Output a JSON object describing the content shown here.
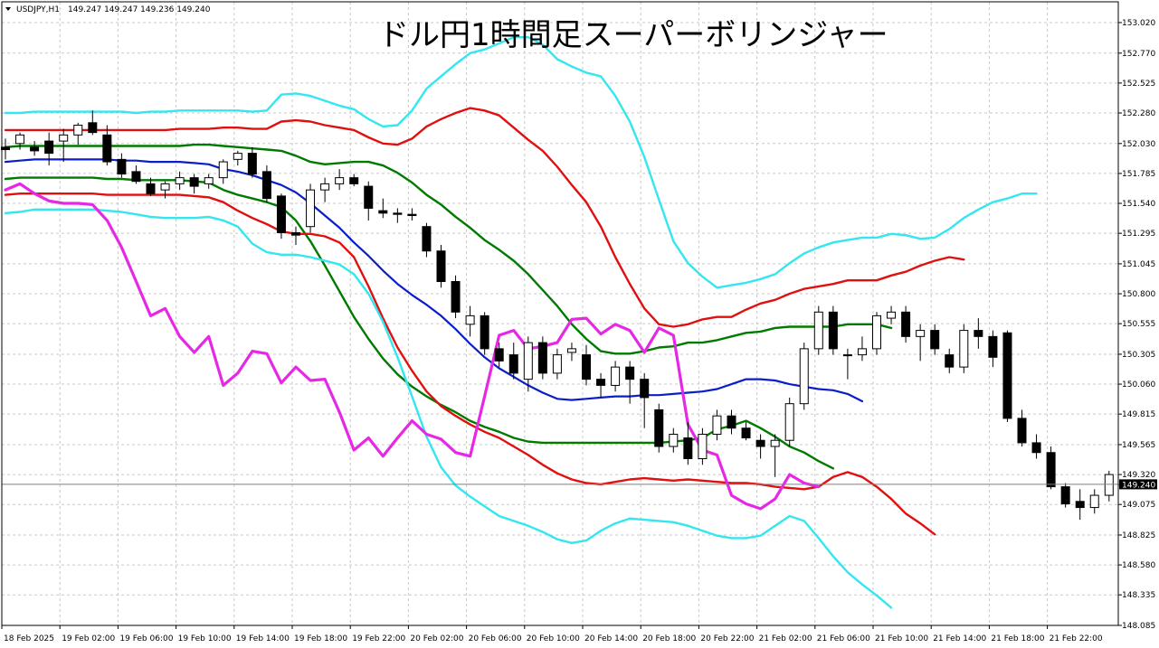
{
  "header": {
    "symbol": "USDJPY,H1",
    "ohlc": "149.247 149.247 149.236 149.240",
    "title": "ドル円1時間足スーパーボリンジャー"
  },
  "colors": {
    "background": "#ffffff",
    "grid": "#c8c8c8",
    "candle_up_fill": "#ffffff",
    "candle_down_fill": "#000000",
    "candle_outline": "#000000",
    "outer_band": "#33e6f0",
    "mid_band": "#e01010",
    "inner_band": "#007a00",
    "center_line": "#0a1ec8",
    "chikou_span": "#e628e6",
    "price_line": "#7f7f7f",
    "price_tag": "#000000"
  },
  "chart_data": {
    "type": "candlestick",
    "symbol": "USDJPY",
    "timeframe": "H1",
    "ylim": [
      148.085,
      153.19
    ],
    "y_ticks": [
      "153.020",
      "152.770",
      "152.525",
      "152.280",
      "152.030",
      "151.785",
      "151.540",
      "151.295",
      "151.045",
      "150.800",
      "150.555",
      "150.305",
      "150.060",
      "149.815",
      "149.565",
      "149.320",
      "149.075",
      "148.825",
      "148.580",
      "148.335",
      "148.085"
    ],
    "x_labels": [
      "18 Feb 2025",
      "19 Feb 02:00",
      "19 Feb 06:00",
      "19 Feb 10:00",
      "19 Feb 14:00",
      "19 Feb 18:00",
      "19 Feb 22:00",
      "20 Feb 02:00",
      "20 Feb 06:00",
      "20 Feb 10:00",
      "20 Feb 14:00",
      "20 Feb 18:00",
      "20 Feb 22:00",
      "21 Feb 02:00",
      "21 Feb 06:00",
      "21 Feb 10:00",
      "21 Feb 14:00",
      "21 Feb 18:00",
      "21 Feb 22:00"
    ],
    "current_price": "149.240",
    "candles": [
      [
        152.0,
        152.07,
        151.9,
        151.98
      ],
      [
        152.03,
        152.12,
        151.98,
        152.1
      ],
      [
        152.0,
        152.05,
        151.93,
        151.97
      ],
      [
        152.05,
        152.12,
        151.85,
        151.95
      ],
      [
        152.05,
        152.15,
        151.88,
        152.1
      ],
      [
        152.1,
        152.2,
        152.02,
        152.18
      ],
      [
        152.2,
        152.3,
        152.1,
        152.12
      ],
      [
        152.1,
        152.18,
        151.85,
        151.88
      ],
      [
        151.9,
        151.95,
        151.75,
        151.78
      ],
      [
        151.8,
        151.85,
        151.7,
        151.72
      ],
      [
        151.7,
        151.75,
        151.6,
        151.62
      ],
      [
        151.65,
        151.72,
        151.58,
        151.7
      ],
      [
        151.7,
        151.8,
        151.65,
        151.75
      ],
      [
        151.75,
        151.78,
        151.62,
        151.68
      ],
      [
        151.7,
        151.78,
        151.66,
        151.75
      ],
      [
        151.75,
        151.9,
        151.7,
        151.88
      ],
      [
        151.9,
        151.97,
        151.85,
        151.95
      ],
      [
        151.95,
        152.0,
        151.75,
        151.78
      ],
      [
        151.8,
        151.85,
        151.55,
        151.58
      ],
      [
        151.6,
        151.62,
        151.25,
        151.3
      ],
      [
        151.3,
        151.35,
        151.2,
        151.28
      ],
      [
        151.35,
        151.7,
        151.3,
        151.65
      ],
      [
        151.65,
        151.75,
        151.55,
        151.7
      ],
      [
        151.7,
        151.82,
        151.65,
        151.75
      ],
      [
        151.75,
        151.78,
        151.68,
        151.7
      ],
      [
        151.68,
        151.72,
        151.4,
        151.5
      ],
      [
        151.48,
        151.58,
        151.42,
        151.46
      ],
      [
        151.46,
        151.5,
        151.38,
        151.45
      ],
      [
        151.45,
        151.5,
        151.4,
        151.44
      ],
      [
        151.35,
        151.38,
        151.1,
        151.15
      ],
      [
        151.15,
        151.2,
        150.85,
        150.9
      ],
      [
        150.9,
        150.95,
        150.6,
        150.65
      ],
      [
        150.55,
        150.7,
        150.45,
        150.62
      ],
      [
        150.62,
        150.65,
        150.3,
        150.35
      ],
      [
        150.35,
        150.4,
        150.2,
        150.25
      ],
      [
        150.3,
        150.4,
        150.1,
        150.15
      ],
      [
        150.1,
        150.45,
        150.0,
        150.4
      ],
      [
        150.4,
        150.45,
        150.1,
        150.15
      ],
      [
        150.15,
        150.35,
        150.1,
        150.3
      ],
      [
        150.32,
        150.4,
        150.25,
        150.35
      ],
      [
        150.3,
        150.38,
        150.05,
        150.1
      ],
      [
        150.1,
        150.15,
        149.95,
        150.05
      ],
      [
        150.05,
        150.25,
        150.0,
        150.2
      ],
      [
        150.2,
        150.25,
        149.9,
        150.1
      ],
      [
        150.1,
        150.15,
        149.7,
        149.95
      ],
      [
        149.85,
        149.9,
        149.5,
        149.55
      ],
      [
        149.55,
        149.7,
        149.5,
        149.65
      ],
      [
        149.62,
        149.75,
        149.4,
        149.45
      ],
      [
        149.45,
        149.7,
        149.4,
        149.65
      ],
      [
        149.65,
        149.85,
        149.6,
        149.8
      ],
      [
        149.8,
        149.85,
        149.65,
        149.7
      ],
      [
        149.7,
        149.75,
        149.6,
        149.62
      ],
      [
        149.6,
        149.65,
        149.45,
        149.55
      ],
      [
        149.55,
        149.65,
        149.3,
        149.6
      ],
      [
        149.6,
        149.95,
        149.55,
        149.9
      ],
      [
        149.9,
        150.4,
        149.85,
        150.35
      ],
      [
        150.35,
        150.7,
        150.3,
        150.65
      ],
      [
        150.65,
        150.7,
        150.3,
        150.35
      ],
      [
        150.3,
        150.35,
        150.1,
        150.3
      ],
      [
        150.3,
        150.45,
        150.25,
        150.35
      ],
      [
        150.35,
        150.65,
        150.3,
        150.62
      ],
      [
        150.6,
        150.7,
        150.55,
        150.65
      ],
      [
        150.65,
        150.7,
        150.4,
        150.45
      ],
      [
        150.45,
        150.55,
        150.25,
        150.5
      ],
      [
        150.5,
        150.55,
        150.3,
        150.35
      ],
      [
        150.3,
        150.35,
        150.15,
        150.2
      ],
      [
        150.2,
        150.55,
        150.15,
        150.5
      ],
      [
        150.5,
        150.6,
        150.35,
        150.45
      ],
      [
        150.45,
        150.5,
        150.2,
        150.28
      ],
      [
        150.48,
        150.5,
        149.75,
        149.78
      ],
      [
        149.78,
        149.85,
        149.55,
        149.58
      ],
      [
        149.58,
        149.65,
        149.45,
        149.5
      ],
      [
        149.5,
        149.55,
        149.2,
        149.22
      ],
      [
        149.22,
        149.25,
        149.05,
        149.08
      ],
      [
        149.1,
        149.2,
        148.95,
        149.05
      ],
      [
        149.05,
        149.2,
        149.0,
        149.15
      ],
      [
        149.15,
        149.35,
        149.1,
        149.32
      ],
      [
        149.24,
        149.25,
        149.23,
        149.24
      ]
    ],
    "series": [
      {
        "name": "",
        "color": "#33e6f0",
        "values": [
          152.28,
          152.28,
          152.29,
          152.29,
          152.29,
          152.29,
          152.29,
          152.29,
          152.29,
          152.28,
          152.29,
          152.29,
          152.3,
          152.3,
          152.3,
          152.3,
          152.3,
          152.29,
          152.3,
          152.43,
          152.44,
          152.42,
          152.38,
          152.34,
          152.31,
          152.23,
          152.17,
          152.18,
          152.3,
          152.48,
          152.58,
          152.68,
          152.77,
          152.8,
          152.85,
          152.9,
          152.9,
          152.84,
          152.72,
          152.66,
          152.61,
          152.58,
          152.42,
          152.21,
          151.92,
          151.57,
          151.23,
          151.05,
          150.94,
          150.85,
          150.87,
          150.89,
          150.92,
          150.96,
          151.05,
          151.13,
          151.18,
          151.22,
          151.24,
          151.26,
          151.26,
          151.29,
          151.28,
          151.25,
          151.26,
          151.33,
          151.42,
          151.49,
          151.55,
          151.58,
          151.62,
          151.62
        ]
      },
      {
        "name": "",
        "color": "#e01010",
        "values": [
          152.14,
          152.14,
          152.14,
          152.14,
          152.14,
          152.14,
          152.14,
          152.14,
          152.14,
          152.14,
          152.14,
          152.14,
          152.15,
          152.15,
          152.15,
          152.16,
          152.16,
          152.15,
          152.15,
          152.21,
          152.22,
          152.21,
          152.18,
          152.16,
          152.14,
          152.08,
          152.03,
          152.02,
          152.07,
          152.17,
          152.23,
          152.28,
          152.32,
          152.3,
          152.26,
          152.16,
          152.06,
          151.97,
          151.84,
          151.69,
          151.55,
          151.35,
          151.1,
          150.88,
          150.68,
          150.55,
          150.53,
          150.55,
          150.59,
          150.61,
          150.61,
          150.67,
          150.72,
          150.75,
          150.8,
          150.84,
          150.86,
          150.88,
          150.91,
          150.91,
          150.91,
          150.95,
          150.98,
          151.03,
          151.07,
          151.1,
          151.08
        ]
      },
      {
        "name": "",
        "color": "#007a00",
        "values": [
          152.0,
          152.01,
          152.01,
          152.01,
          152.01,
          152.01,
          152.01,
          152.01,
          152.01,
          152.01,
          152.01,
          152.01,
          152.01,
          152.02,
          152.02,
          152.01,
          152.0,
          151.99,
          151.98,
          151.97,
          151.93,
          151.88,
          151.86,
          151.87,
          151.88,
          151.88,
          151.85,
          151.79,
          151.71,
          151.61,
          151.53,
          151.43,
          151.34,
          151.24,
          151.16,
          151.07,
          150.96,
          150.83,
          150.7,
          150.55,
          150.43,
          150.33,
          150.31,
          150.31,
          150.33,
          150.36,
          150.37,
          150.4,
          150.4,
          150.42,
          150.45,
          150.48,
          150.49,
          150.52,
          150.53,
          150.53,
          150.53,
          150.53,
          150.55,
          150.55,
          150.55,
          150.52
        ]
      },
      {
        "name": "",
        "color": "#0a1ec8",
        "values": [
          151.88,
          151.89,
          151.9,
          151.9,
          151.9,
          151.9,
          151.9,
          151.9,
          151.89,
          151.89,
          151.88,
          151.88,
          151.88,
          151.87,
          151.86,
          151.82,
          151.8,
          151.77,
          151.73,
          151.69,
          151.63,
          151.54,
          151.44,
          151.34,
          151.22,
          151.11,
          150.99,
          150.88,
          150.79,
          150.71,
          150.62,
          150.51,
          150.39,
          150.28,
          150.19,
          150.12,
          150.05,
          149.99,
          149.94,
          149.93,
          149.94,
          149.95,
          149.96,
          149.96,
          149.97,
          149.97,
          149.98,
          149.99,
          150.0,
          150.02,
          150.06,
          150.1,
          150.1,
          150.09,
          150.06,
          150.04,
          150.02,
          150.01,
          149.98,
          149.92
        ]
      },
      {
        "name": "",
        "color": "#007a00",
        "values": [
          151.74,
          151.75,
          151.75,
          151.75,
          151.75,
          151.75,
          151.75,
          151.74,
          151.74,
          151.73,
          151.73,
          151.73,
          151.73,
          151.72,
          151.71,
          151.65,
          151.61,
          151.58,
          151.55,
          151.51,
          151.4,
          151.23,
          151.03,
          150.82,
          150.61,
          150.43,
          150.27,
          150.14,
          150.04,
          149.96,
          149.89,
          149.83,
          149.76,
          149.71,
          149.67,
          149.62,
          149.59,
          149.58,
          149.58,
          149.58,
          149.58,
          149.58,
          149.58,
          149.58,
          149.58,
          149.58,
          149.59,
          149.6,
          149.62,
          149.69,
          149.72,
          149.76,
          149.7,
          149.63,
          149.55,
          149.5,
          149.43,
          149.37
        ]
      },
      {
        "name": "",
        "color": "#e01010",
        "values": [
          151.61,
          151.62,
          151.62,
          151.62,
          151.62,
          151.62,
          151.62,
          151.61,
          151.61,
          151.61,
          151.61,
          151.61,
          151.61,
          151.6,
          151.59,
          151.55,
          151.48,
          151.42,
          151.37,
          151.31,
          151.29,
          151.29,
          151.27,
          151.22,
          151.1,
          150.86,
          150.6,
          150.36,
          150.17,
          150.0,
          149.88,
          149.8,
          149.73,
          149.67,
          149.62,
          149.55,
          149.48,
          149.4,
          149.33,
          149.28,
          149.25,
          149.24,
          149.26,
          149.28,
          149.29,
          149.28,
          149.27,
          149.28,
          149.27,
          149.26,
          149.25,
          149.25,
          149.24,
          149.22,
          149.21,
          149.2,
          149.22,
          149.3,
          149.34,
          149.3,
          149.22,
          149.12,
          149.0,
          148.92,
          148.83
        ]
      },
      {
        "name": "",
        "color": "#33e6f0",
        "values": [
          151.46,
          151.47,
          151.49,
          151.49,
          151.49,
          151.49,
          151.49,
          151.48,
          151.47,
          151.45,
          151.43,
          151.42,
          151.42,
          151.42,
          151.43,
          151.4,
          151.35,
          151.21,
          151.14,
          151.12,
          151.12,
          151.1,
          151.07,
          151.04,
          150.96,
          150.8,
          150.57,
          150.28,
          149.96,
          149.63,
          149.38,
          149.23,
          149.14,
          149.06,
          148.98,
          148.94,
          148.9,
          148.85,
          148.79,
          148.76,
          148.78,
          148.86,
          148.92,
          148.96,
          148.95,
          148.94,
          148.93,
          148.9,
          148.86,
          148.82,
          148.8,
          148.8,
          148.82,
          148.9,
          148.98,
          148.94,
          148.8,
          148.65,
          148.52,
          148.42,
          148.33,
          148.23
        ]
      },
      {
        "name": "",
        "color": "#e628e6",
        "values": [
          151.65,
          151.7,
          151.62,
          151.56,
          151.54,
          151.54,
          151.53,
          151.4,
          151.18,
          150.9,
          150.62,
          150.68,
          150.45,
          150.32,
          150.45,
          150.05,
          150.15,
          150.33,
          150.31,
          150.07,
          150.2,
          150.09,
          150.1,
          149.83,
          149.52,
          149.62,
          149.47,
          149.62,
          149.76,
          149.65,
          149.61,
          149.5,
          149.47,
          149.96,
          150.46,
          150.5,
          150.35,
          150.37,
          150.4,
          150.59,
          150.6,
          150.47,
          150.55,
          150.5,
          150.32,
          150.52,
          150.46,
          149.73,
          149.52,
          149.48,
          149.15,
          149.08,
          149.04,
          149.12,
          149.32,
          149.25,
          149.22
        ]
      }
    ]
  }
}
